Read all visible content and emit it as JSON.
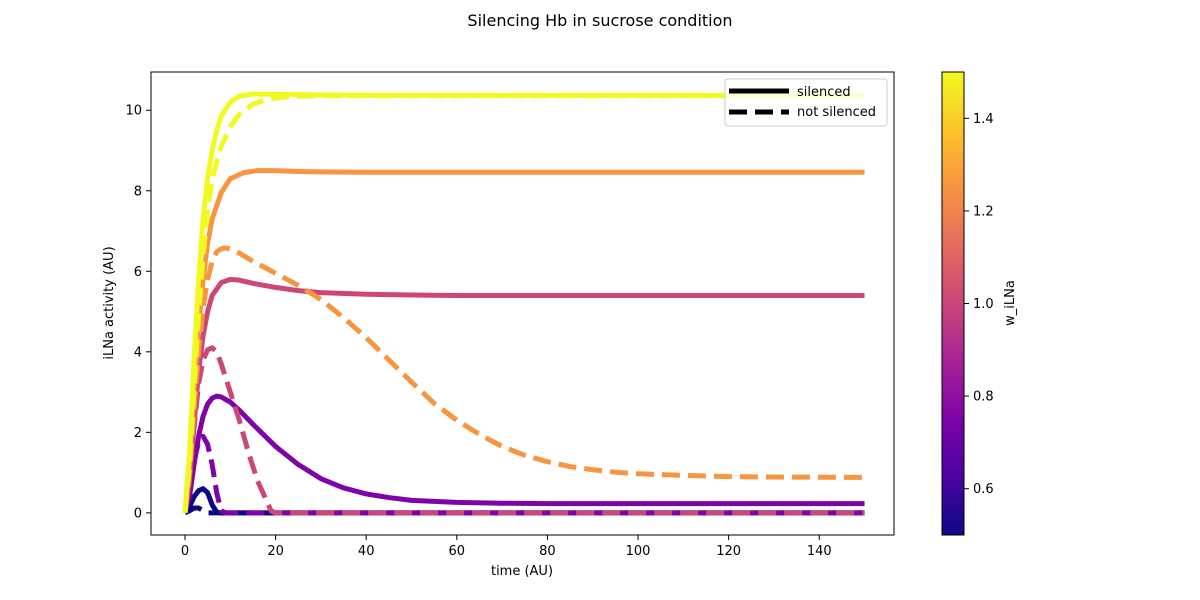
{
  "figure": {
    "suptitle": "Silencing Hb in sucrose condition"
  },
  "chart_data": {
    "type": "line",
    "title": "Silencing Hb in sucrose condition",
    "xlabel": "time (AU)",
    "ylabel": "iLNa activity (AU)",
    "xlim": [
      -7.5,
      156.5
    ],
    "ylim": [
      -0.55,
      10.95
    ],
    "xticks": [
      0,
      20,
      40,
      60,
      80,
      100,
      120,
      140
    ],
    "yticks": [
      0,
      2,
      4,
      6,
      8,
      10
    ],
    "grid": false,
    "legend": {
      "placement": "top-right",
      "entries": [
        {
          "label": "silenced",
          "style": "solid"
        },
        {
          "label": "not silenced",
          "style": "dashed"
        }
      ]
    },
    "colorbar": {
      "label": "w_iLNa",
      "colormap": "plasma",
      "range": [
        0.5,
        1.5
      ],
      "ticks": [
        0.6,
        0.8,
        1.0,
        1.2,
        1.4
      ],
      "tick_labels": [
        "0.6",
        "0.8",
        "1.0",
        "1.2",
        "1.4"
      ]
    },
    "series": [
      {
        "w": 0.5,
        "style": "solid",
        "color": "#0d0887",
        "points": [
          [
            0,
            0
          ],
          [
            1,
            0.15
          ],
          [
            2,
            0.4
          ],
          [
            3,
            0.55
          ],
          [
            4,
            0.6
          ],
          [
            5,
            0.5
          ],
          [
            6,
            0.2
          ],
          [
            7,
            0.02
          ],
          [
            8,
            0
          ],
          [
            150,
            0
          ]
        ]
      },
      {
        "w": 0.5,
        "style": "dashed",
        "color": "#0d0887",
        "points": [
          [
            0,
            0
          ],
          [
            1,
            0.05
          ],
          [
            2,
            0.12
          ],
          [
            3,
            0.12
          ],
          [
            4,
            0.06
          ],
          [
            5,
            0
          ],
          [
            150,
            0
          ]
        ]
      },
      {
        "w": 0.75,
        "style": "solid",
        "color": "#7e03a8",
        "points": [
          [
            0,
            0
          ],
          [
            1,
            0.4
          ],
          [
            2,
            1.2
          ],
          [
            3,
            1.9
          ],
          [
            4,
            2.4
          ],
          [
            5,
            2.7
          ],
          [
            6,
            2.85
          ],
          [
            7,
            2.9
          ],
          [
            8,
            2.88
          ],
          [
            10,
            2.75
          ],
          [
            12,
            2.55
          ],
          [
            15,
            2.2
          ],
          [
            20,
            1.65
          ],
          [
            25,
            1.2
          ],
          [
            30,
            0.85
          ],
          [
            35,
            0.62
          ],
          [
            40,
            0.47
          ],
          [
            45,
            0.38
          ],
          [
            50,
            0.31
          ],
          [
            60,
            0.26
          ],
          [
            70,
            0.24
          ],
          [
            80,
            0.23
          ],
          [
            100,
            0.23
          ],
          [
            150,
            0.23
          ]
        ]
      },
      {
        "w": 0.75,
        "style": "dashed",
        "color": "#7e03a8",
        "points": [
          [
            0,
            0
          ],
          [
            1,
            0.6
          ],
          [
            2,
            1.3
          ],
          [
            3,
            1.75
          ],
          [
            4,
            1.9
          ],
          [
            5,
            1.7
          ],
          [
            6,
            1.2
          ],
          [
            7,
            0.5
          ],
          [
            8,
            0.05
          ],
          [
            9,
            0
          ],
          [
            150,
            0
          ]
        ]
      },
      {
        "w": 1.0,
        "style": "solid",
        "color": "#cc4778",
        "points": [
          [
            0,
            0
          ],
          [
            1,
            0.8
          ],
          [
            2,
            2.2
          ],
          [
            3,
            3.5
          ],
          [
            4,
            4.4
          ],
          [
            5,
            5.0
          ],
          [
            6,
            5.4
          ],
          [
            8,
            5.72
          ],
          [
            10,
            5.8
          ],
          [
            12,
            5.78
          ],
          [
            15,
            5.7
          ],
          [
            20,
            5.6
          ],
          [
            25,
            5.52
          ],
          [
            30,
            5.47
          ],
          [
            40,
            5.43
          ],
          [
            50,
            5.41
          ],
          [
            60,
            5.4
          ],
          [
            150,
            5.4
          ]
        ]
      },
      {
        "w": 1.0,
        "style": "dashed",
        "color": "#cc4778",
        "points": [
          [
            0,
            0
          ],
          [
            1,
            0.9
          ],
          [
            2,
            2.1
          ],
          [
            3,
            3.2
          ],
          [
            4,
            3.8
          ],
          [
            5,
            4.05
          ],
          [
            6,
            4.1
          ],
          [
            7,
            4.0
          ],
          [
            8,
            3.7
          ],
          [
            10,
            3.0
          ],
          [
            12,
            2.3
          ],
          [
            14,
            1.5
          ],
          [
            16,
            0.8
          ],
          [
            18,
            0.3
          ],
          [
            19,
            0.05
          ],
          [
            20,
            0
          ],
          [
            150,
            0
          ]
        ]
      },
      {
        "w": 1.25,
        "style": "solid",
        "color": "#f89540",
        "points": [
          [
            0,
            0
          ],
          [
            1,
            1.2
          ],
          [
            2,
            3.0
          ],
          [
            3,
            4.6
          ],
          [
            4,
            5.8
          ],
          [
            5,
            6.7
          ],
          [
            6,
            7.3
          ],
          [
            8,
            7.95
          ],
          [
            10,
            8.3
          ],
          [
            13,
            8.45
          ],
          [
            16,
            8.5
          ],
          [
            20,
            8.5
          ],
          [
            25,
            8.48
          ],
          [
            30,
            8.47
          ],
          [
            40,
            8.46
          ],
          [
            150,
            8.46
          ]
        ]
      },
      {
        "w": 1.25,
        "style": "dashed",
        "color": "#f89540",
        "points": [
          [
            0,
            0
          ],
          [
            1,
            1.0
          ],
          [
            2,
            2.6
          ],
          [
            3,
            4.0
          ],
          [
            4,
            5.1
          ],
          [
            5,
            5.8
          ],
          [
            6,
            6.25
          ],
          [
            7,
            6.48
          ],
          [
            8,
            6.56
          ],
          [
            9,
            6.58
          ],
          [
            10,
            6.55
          ],
          [
            12,
            6.45
          ],
          [
            15,
            6.25
          ],
          [
            20,
            5.95
          ],
          [
            25,
            5.65
          ],
          [
            30,
            5.3
          ],
          [
            35,
            4.85
          ],
          [
            40,
            4.35
          ],
          [
            45,
            3.8
          ],
          [
            50,
            3.25
          ],
          [
            55,
            2.72
          ],
          [
            60,
            2.3
          ],
          [
            65,
            1.95
          ],
          [
            70,
            1.65
          ],
          [
            75,
            1.43
          ],
          [
            80,
            1.27
          ],
          [
            85,
            1.15
          ],
          [
            90,
            1.07
          ],
          [
            95,
            1.01
          ],
          [
            100,
            0.97
          ],
          [
            110,
            0.93
          ],
          [
            120,
            0.9
          ],
          [
            130,
            0.89
          ],
          [
            150,
            0.88
          ]
        ]
      },
      {
        "w": 1.5,
        "style": "solid",
        "color": "#f0f921",
        "points": [
          [
            0,
            0
          ],
          [
            1,
            1.5
          ],
          [
            2,
            3.8
          ],
          [
            3,
            5.8
          ],
          [
            4,
            7.3
          ],
          [
            5,
            8.3
          ],
          [
            6,
            9.0
          ],
          [
            7,
            9.5
          ],
          [
            8,
            9.85
          ],
          [
            10,
            10.2
          ],
          [
            12,
            10.35
          ],
          [
            15,
            10.4
          ],
          [
            20,
            10.4
          ],
          [
            25,
            10.39
          ],
          [
            30,
            10.38
          ],
          [
            40,
            10.37
          ],
          [
            150,
            10.37
          ]
        ]
      },
      {
        "w": 1.5,
        "style": "dashed",
        "color": "#f0f921",
        "points": [
          [
            0,
            0
          ],
          [
            1,
            1.2
          ],
          [
            2,
            3.1
          ],
          [
            3,
            4.9
          ],
          [
            4,
            6.4
          ],
          [
            5,
            7.5
          ],
          [
            6,
            8.3
          ],
          [
            8,
            9.1
          ],
          [
            10,
            9.6
          ],
          [
            12,
            9.9
          ],
          [
            15,
            10.15
          ],
          [
            18,
            10.27
          ],
          [
            22,
            10.33
          ],
          [
            26,
            10.35
          ],
          [
            30,
            10.36
          ],
          [
            150,
            10.36
          ]
        ]
      }
    ]
  }
}
